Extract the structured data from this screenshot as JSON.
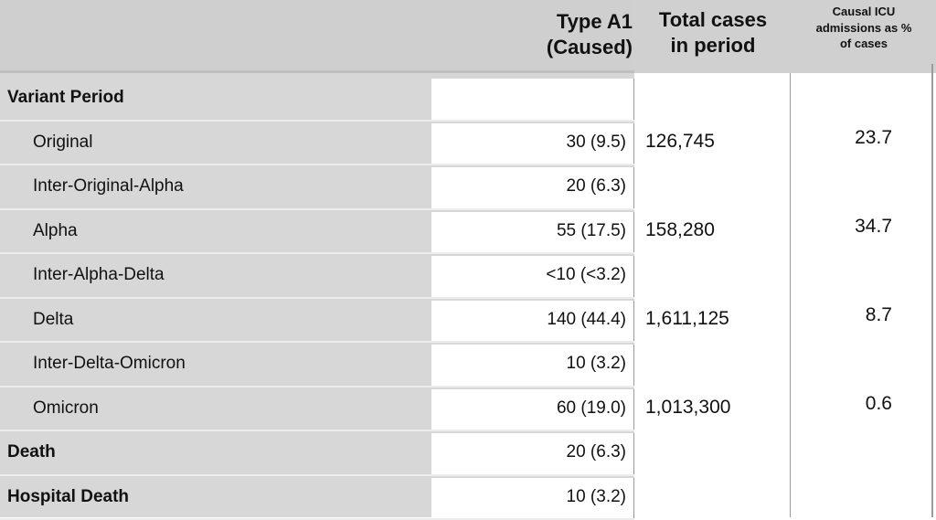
{
  "headers": {
    "type_a1_line1": "Type A1",
    "type_a1_line2": "(Caused)",
    "total_line1": "Total cases",
    "total_line2": "in period",
    "icu_line1": "Causal ICU",
    "icu_line2": "admissions as %",
    "icu_line3": "of cases"
  },
  "rows": [
    {
      "label": "Variant Period",
      "bold": true,
      "indent": false,
      "type_a1": "",
      "total": "",
      "icu_pct": ""
    },
    {
      "label": "Original",
      "bold": false,
      "indent": true,
      "type_a1": "30 (9.5)",
      "total": "126,745",
      "icu_pct": "23.7"
    },
    {
      "label": "Inter-Original-Alpha",
      "bold": false,
      "indent": true,
      "type_a1": "20 (6.3)",
      "total": "",
      "icu_pct": ""
    },
    {
      "label": "Alpha",
      "bold": false,
      "indent": true,
      "type_a1": "55 (17.5)",
      "total": "158,280",
      "icu_pct": "34.7"
    },
    {
      "label": "Inter-Alpha-Delta",
      "bold": false,
      "indent": true,
      "type_a1": "<10 (<3.2)",
      "total": "",
      "icu_pct": ""
    },
    {
      "label": "Delta",
      "bold": false,
      "indent": true,
      "type_a1": "140 (44.4)",
      "total": "1,611,125",
      "icu_pct": "8.7"
    },
    {
      "label": "Inter-Delta-Omicron",
      "bold": false,
      "indent": true,
      "type_a1": "10 (3.2)",
      "total": "",
      "icu_pct": ""
    },
    {
      "label": "Omicron",
      "bold": false,
      "indent": true,
      "type_a1": "60 (19.0)",
      "total": "1,013,300",
      "icu_pct": "0.6"
    },
    {
      "label": "Death",
      "bold": true,
      "indent": false,
      "type_a1": "20 (6.3)",
      "total": "",
      "icu_pct": ""
    },
    {
      "label": "Hospital Death",
      "bold": true,
      "indent": false,
      "type_a1": "10 (3.2)",
      "total": "",
      "icu_pct": ""
    }
  ]
}
